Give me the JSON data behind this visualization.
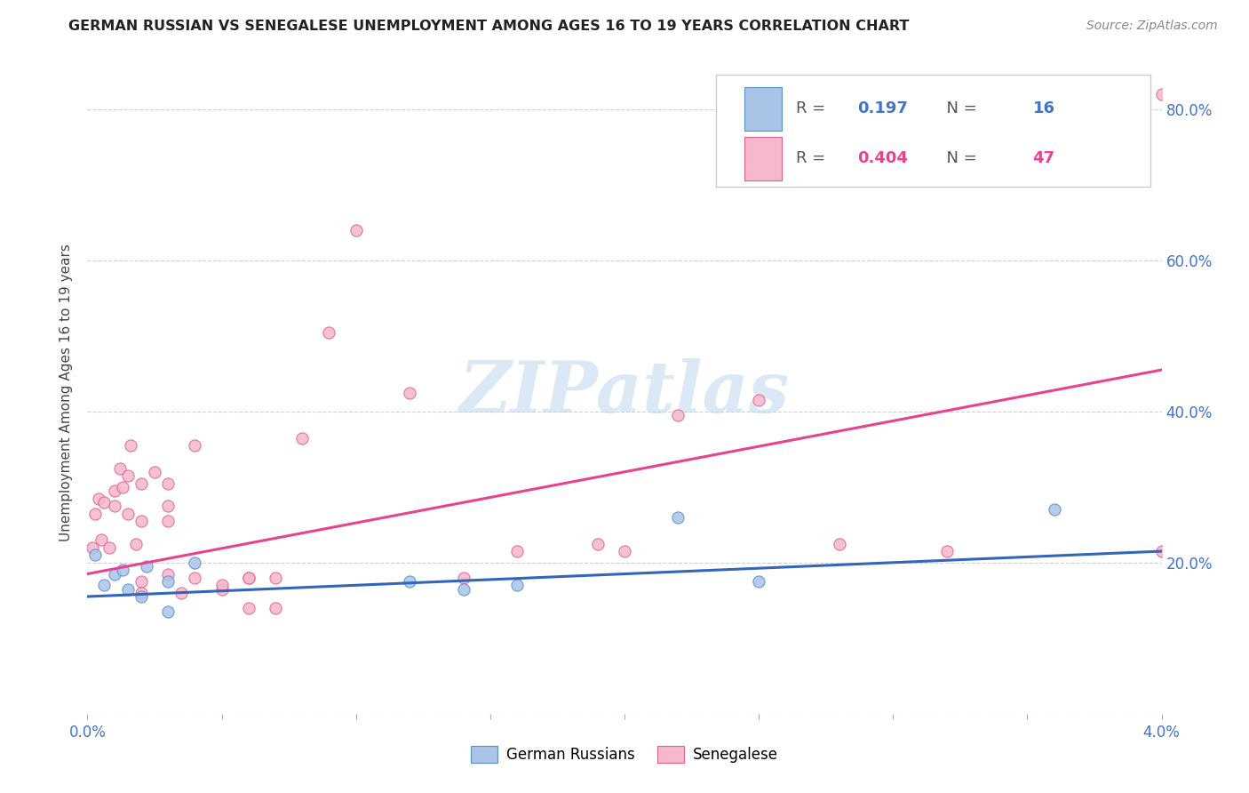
{
  "title": "GERMAN RUSSIAN VS SENEGALESE UNEMPLOYMENT AMONG AGES 16 TO 19 YEARS CORRELATION CHART",
  "source": "Source: ZipAtlas.com",
  "ylabel": "Unemployment Among Ages 16 to 19 years",
  "xmin": 0.0,
  "xmax": 0.04,
  "ymin": 0.0,
  "ymax": 0.85,
  "legend_box": {
    "blue_r": "0.197",
    "blue_n": "16",
    "pink_r": "0.404",
    "pink_n": "47"
  },
  "german_russian": {
    "scatter_color": "#aac4e8",
    "edge_color": "#5a8fc8",
    "line_color": "#3366bb",
    "x": [
      0.0003,
      0.0006,
      0.001,
      0.0013,
      0.0015,
      0.002,
      0.0022,
      0.003,
      0.003,
      0.004,
      0.012,
      0.014,
      0.016,
      0.022,
      0.025,
      0.036
    ],
    "y": [
      0.21,
      0.17,
      0.185,
      0.19,
      0.165,
      0.155,
      0.195,
      0.175,
      0.135,
      0.2,
      0.175,
      0.165,
      0.17,
      0.26,
      0.175,
      0.27
    ],
    "trendline_x": [
      0.0,
      0.04
    ],
    "trendline_y": [
      0.155,
      0.215
    ]
  },
  "senegalese": {
    "scatter_color": "#f5b8cc",
    "edge_color": "#e06090",
    "line_color": "#e84393",
    "x": [
      0.0002,
      0.0003,
      0.0004,
      0.0005,
      0.0006,
      0.0008,
      0.001,
      0.001,
      0.0012,
      0.0013,
      0.0015,
      0.0015,
      0.0016,
      0.0018,
      0.002,
      0.002,
      0.002,
      0.002,
      0.0025,
      0.003,
      0.003,
      0.003,
      0.003,
      0.0035,
      0.004,
      0.004,
      0.005,
      0.005,
      0.006,
      0.006,
      0.006,
      0.007,
      0.007,
      0.008,
      0.009,
      0.01,
      0.012,
      0.014,
      0.016,
      0.019,
      0.02,
      0.022,
      0.025,
      0.028,
      0.032,
      0.04,
      0.04
    ],
    "y": [
      0.22,
      0.265,
      0.285,
      0.23,
      0.28,
      0.22,
      0.275,
      0.295,
      0.325,
      0.3,
      0.265,
      0.315,
      0.355,
      0.225,
      0.305,
      0.255,
      0.175,
      0.16,
      0.32,
      0.305,
      0.275,
      0.255,
      0.185,
      0.16,
      0.18,
      0.355,
      0.165,
      0.17,
      0.18,
      0.18,
      0.14,
      0.18,
      0.14,
      0.365,
      0.505,
      0.64,
      0.425,
      0.18,
      0.215,
      0.225,
      0.215,
      0.395,
      0.415,
      0.225,
      0.215,
      0.215,
      0.82
    ],
    "trendline_x": [
      0.0,
      0.04
    ],
    "trendline_y": [
      0.185,
      0.455
    ]
  }
}
